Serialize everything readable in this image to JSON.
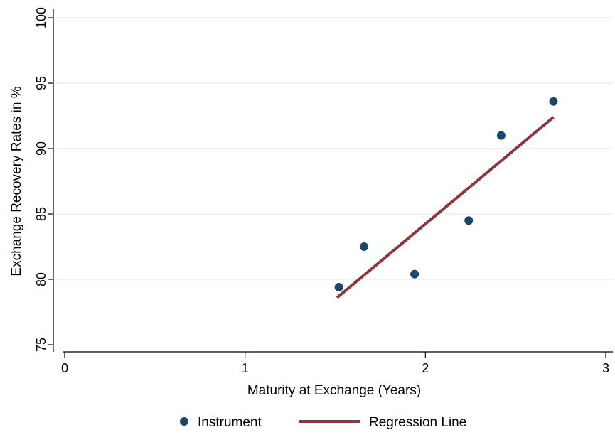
{
  "chart_data": {
    "type": "scatter",
    "xlabel": "Maturity at Exchange (Years)",
    "ylabel": "Exchange Recovery Rates in %",
    "xlim": [
      0,
      3
    ],
    "ylim": [
      75,
      100
    ],
    "x_ticks": [
      0,
      1,
      2,
      3
    ],
    "y_ticks": [
      75,
      80,
      85,
      90,
      95,
      100
    ],
    "grid": "horizontal",
    "legend_position": "bottom",
    "series": [
      {
        "name": "Instrument",
        "type": "scatter",
        "color": "#1a476f",
        "points": [
          {
            "x": 1.52,
            "y": 79.4
          },
          {
            "x": 1.66,
            "y": 82.5
          },
          {
            "x": 1.94,
            "y": 80.4
          },
          {
            "x": 2.24,
            "y": 84.5
          },
          {
            "x": 2.42,
            "y": 91.0
          },
          {
            "x": 2.71,
            "y": 93.6
          }
        ]
      },
      {
        "name": "Regression Line",
        "type": "line",
        "color": "#90353b",
        "points": [
          {
            "x": 1.51,
            "y": 78.6
          },
          {
            "x": 2.71,
            "y": 92.4
          }
        ]
      }
    ]
  }
}
